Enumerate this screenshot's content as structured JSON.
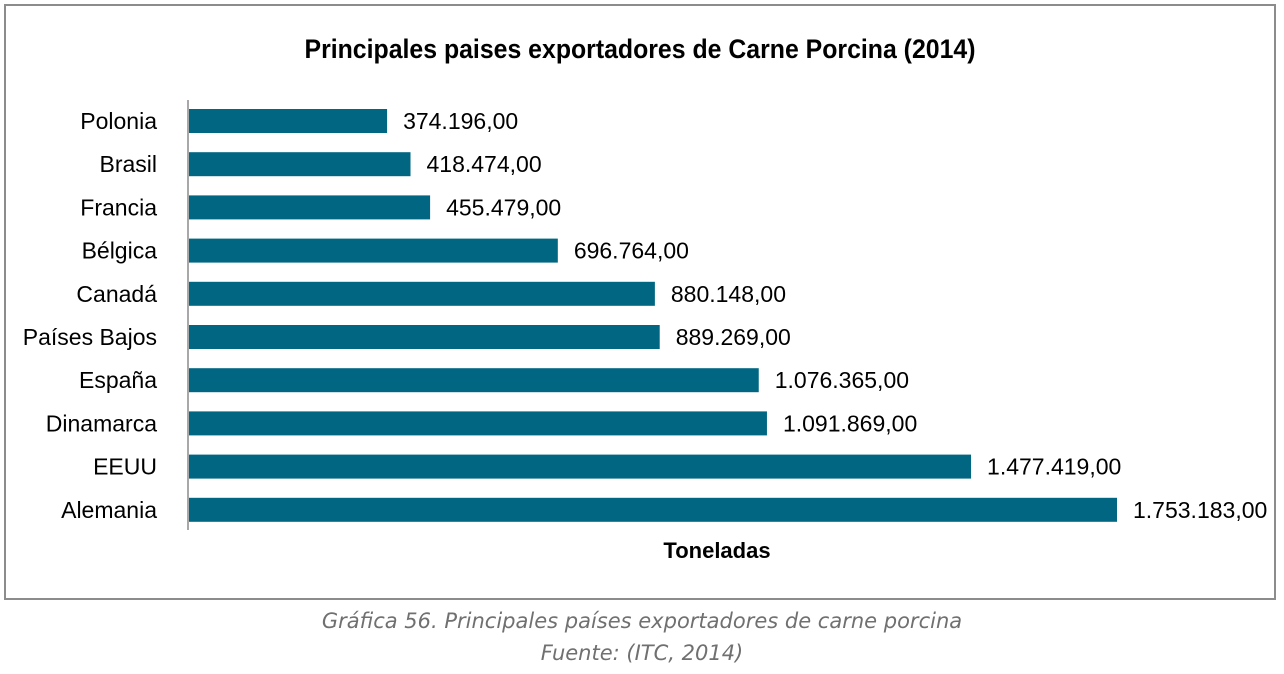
{
  "caption": {
    "line1": "Gráfica 56. Principales países exportadores de carne porcina",
    "line2": "Fuente: (ITC, 2014)"
  },
  "chart_data": {
    "type": "bar",
    "orientation": "horizontal",
    "title": "Principales paises exportadores de Carne Porcina (2014)",
    "xlabel": "Toneladas",
    "ylabel": "",
    "categories": [
      "Polonia",
      "Brasil",
      "Francia",
      "Bélgica",
      "Canadá",
      "Países Bajos",
      "España",
      "Dinamarca",
      "EEUU",
      "Alemania"
    ],
    "values": [
      374196,
      418474,
      455479,
      696764,
      880148,
      889269,
      1076365,
      1091869,
      1477419,
      1753183
    ],
    "value_labels": [
      "374.196,00",
      "418.474,00",
      "455.479,00",
      "696.764,00",
      "880.148,00",
      "889.269,00",
      "1.076.365,00",
      "1.091.869,00",
      "1.477.419,00",
      "1.753.183,00"
    ],
    "xlim": [
      0,
      1753183
    ],
    "bar_color": "#006682",
    "grid": false,
    "legend": "none"
  }
}
